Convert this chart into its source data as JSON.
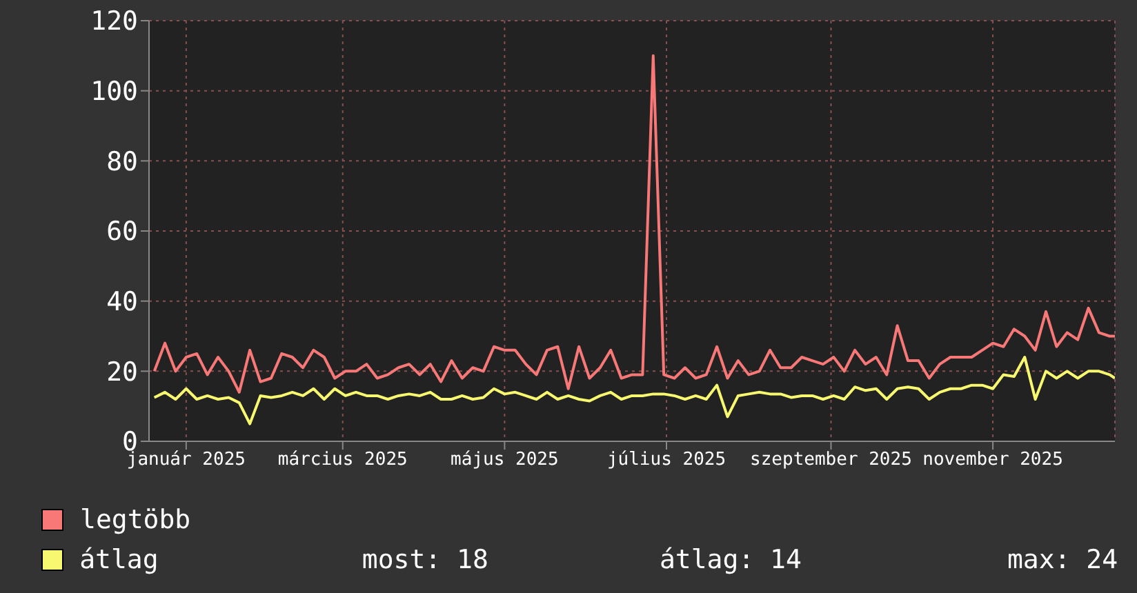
{
  "chart_data": {
    "type": "line",
    "x": [
      "2025-01-03",
      "2025-01-07",
      "2025-01-11",
      "2025-01-15",
      "2025-01-19",
      "2025-01-23",
      "2025-01-27",
      "2025-01-31",
      "2025-02-04",
      "2025-02-08",
      "2025-02-12",
      "2025-02-16",
      "2025-02-20",
      "2025-02-24",
      "2025-02-28",
      "2025-03-04",
      "2025-03-08",
      "2025-03-12",
      "2025-03-16",
      "2025-03-20",
      "2025-03-24",
      "2025-03-28",
      "2025-04-01",
      "2025-04-05",
      "2025-04-09",
      "2025-04-13",
      "2025-04-17",
      "2025-04-21",
      "2025-04-25",
      "2025-04-29",
      "2025-05-03",
      "2025-05-07",
      "2025-05-11",
      "2025-05-15",
      "2025-05-19",
      "2025-05-23",
      "2025-05-27",
      "2025-05-31",
      "2025-06-04",
      "2025-06-08",
      "2025-06-12",
      "2025-06-16",
      "2025-06-20",
      "2025-06-24",
      "2025-06-28",
      "2025-07-02",
      "2025-07-06",
      "2025-07-10",
      "2025-07-14",
      "2025-07-18",
      "2025-07-22",
      "2025-07-26",
      "2025-07-30",
      "2025-08-03",
      "2025-08-07",
      "2025-08-11",
      "2025-08-15",
      "2025-08-19",
      "2025-08-23",
      "2025-08-27",
      "2025-08-31",
      "2025-09-04",
      "2025-09-08",
      "2025-09-12",
      "2025-09-16",
      "2025-09-20",
      "2025-09-24",
      "2025-09-28",
      "2025-10-02",
      "2025-10-06",
      "2025-10-10",
      "2025-10-14",
      "2025-10-18",
      "2025-10-22",
      "2025-10-26",
      "2025-10-30",
      "2025-11-03",
      "2025-11-07",
      "2025-11-11",
      "2025-11-15",
      "2025-11-19",
      "2025-11-23",
      "2025-11-27",
      "2025-12-01",
      "2025-12-05",
      "2025-12-09",
      "2025-12-13",
      "2025-12-17",
      "2025-12-21",
      "2025-12-25",
      "2025-12-29",
      "2025-12-31"
    ],
    "series": [
      {
        "name": "legtöbb",
        "color": "#f87878",
        "values": [
          20,
          28,
          20,
          24,
          25,
          19,
          24,
          20,
          14,
          26,
          17,
          18,
          25,
          24,
          21,
          26,
          24,
          18,
          20,
          20,
          22,
          18,
          19,
          21,
          22,
          19,
          22,
          17,
          23,
          18,
          21,
          20,
          27,
          26,
          26,
          22,
          19,
          26,
          27,
          15,
          27,
          18,
          21,
          26,
          18,
          19,
          19,
          110,
          19,
          18,
          21,
          18,
          19,
          27,
          18,
          23,
          19,
          20,
          26,
          21,
          21,
          24,
          23,
          22,
          24,
          20,
          26,
          22,
          24,
          19,
          33,
          23,
          23,
          18,
          22,
          24,
          24,
          24,
          26,
          28,
          27,
          32,
          30,
          26,
          37,
          27,
          31,
          29,
          38,
          31,
          30,
          30
        ]
      },
      {
        "name": "átlag",
        "color": "#f8f870",
        "values": [
          12.5,
          14,
          12,
          15,
          12,
          13,
          12,
          12.5,
          11,
          5,
          13,
          12.5,
          13,
          14,
          13,
          15,
          12,
          15,
          13,
          14,
          13,
          13,
          12,
          13,
          13.5,
          13,
          14,
          12,
          12,
          13,
          12,
          12.5,
          15,
          13.5,
          14,
          13,
          12,
          14,
          12,
          13,
          12,
          11.5,
          13,
          14,
          12,
          13,
          13,
          13.5,
          13.5,
          13,
          12,
          13,
          12,
          16,
          7,
          13,
          13.5,
          14,
          13.5,
          13.5,
          12.5,
          13,
          13,
          12,
          13,
          12,
          15.5,
          14.5,
          15,
          12,
          15,
          15.5,
          15,
          12,
          14,
          15,
          15,
          16,
          16,
          15,
          19,
          18.5,
          24,
          12,
          20,
          18,
          20,
          18,
          20,
          20,
          19,
          18
        ]
      }
    ],
    "xlim": [
      "2025-01-01",
      "2025-12-31"
    ],
    "xticks": [
      {
        "value": "2025-01-15",
        "label": "január 2025"
      },
      {
        "value": "2025-03-15",
        "label": "március 2025"
      },
      {
        "value": "2025-05-15",
        "label": "május 2025"
      },
      {
        "value": "2025-07-15",
        "label": "július 2025"
      },
      {
        "value": "2025-09-15",
        "label": "szeptember 2025"
      },
      {
        "value": "2025-11-15",
        "label": "november 2025"
      }
    ],
    "ylim": [
      0,
      120
    ],
    "yticks": [
      0,
      20,
      40,
      60,
      80,
      100,
      120
    ],
    "grid": true,
    "legend": "bottom",
    "marker": "none",
    "line_style": "solid",
    "annotations": [
      "most: 18",
      "átlag: 14",
      "max: 24"
    ]
  }
}
